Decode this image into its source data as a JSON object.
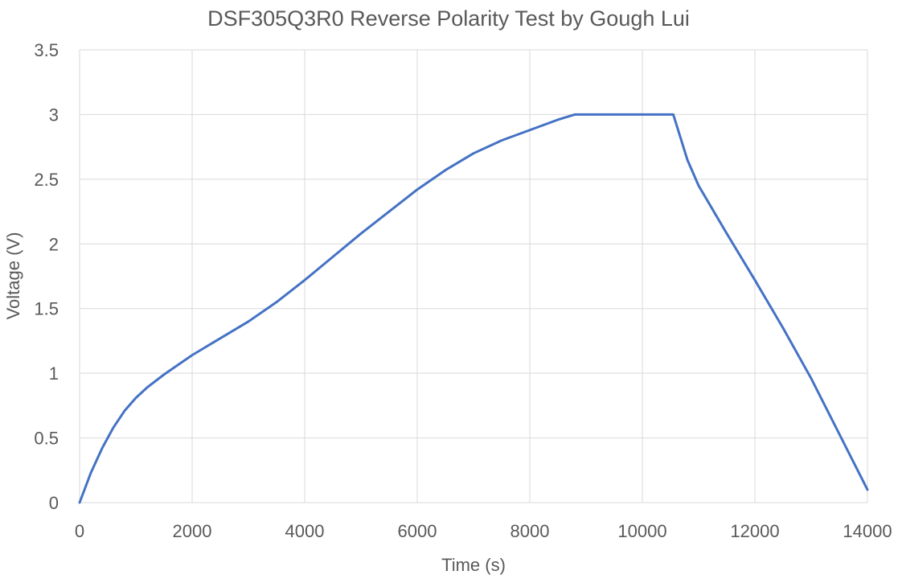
{
  "chart_data": {
    "type": "line",
    "title": "DSF305Q3R0 Reverse Polarity Test by Gough Lui",
    "xlabel": "Time (s)",
    "ylabel": "Voltage (V)",
    "xlim": [
      0,
      14000
    ],
    "ylim": [
      0,
      3.5
    ],
    "x_ticks": [
      0,
      2000,
      4000,
      6000,
      8000,
      10000,
      12000,
      14000
    ],
    "x_tick_labels": [
      "0",
      "2000",
      "4000",
      "6000",
      "8000",
      "10000",
      "12000",
      "14000"
    ],
    "y_ticks": [
      0,
      0.5,
      1,
      1.5,
      2,
      2.5,
      3,
      3.5
    ],
    "y_tick_labels": [
      "0",
      "0.5",
      "1",
      "1.5",
      "2",
      "2.5",
      "3",
      "3.5"
    ],
    "grid": true,
    "legend": "none",
    "series": [
      {
        "color": "#4472c4",
        "x": [
          0,
          200,
          400,
          600,
          800,
          1000,
          1200,
          1500,
          1800,
          2000,
          2500,
          3000,
          3500,
          4000,
          4500,
          5000,
          5500,
          6000,
          6500,
          7000,
          7500,
          8000,
          8500,
          8800,
          9000,
          10000,
          10500,
          10550,
          10800,
          11000,
          11500,
          12000,
          12500,
          13000,
          13500,
          14000
        ],
        "y": [
          0,
          0.23,
          0.42,
          0.58,
          0.71,
          0.81,
          0.89,
          0.99,
          1.08,
          1.14,
          1.27,
          1.4,
          1.55,
          1.72,
          1.9,
          2.08,
          2.25,
          2.42,
          2.57,
          2.7,
          2.8,
          2.88,
          2.96,
          3.0,
          3.0,
          3.0,
          3.0,
          3.0,
          2.65,
          2.45,
          2.08,
          1.72,
          1.35,
          0.96,
          0.53,
          0.1
        ]
      }
    ]
  }
}
